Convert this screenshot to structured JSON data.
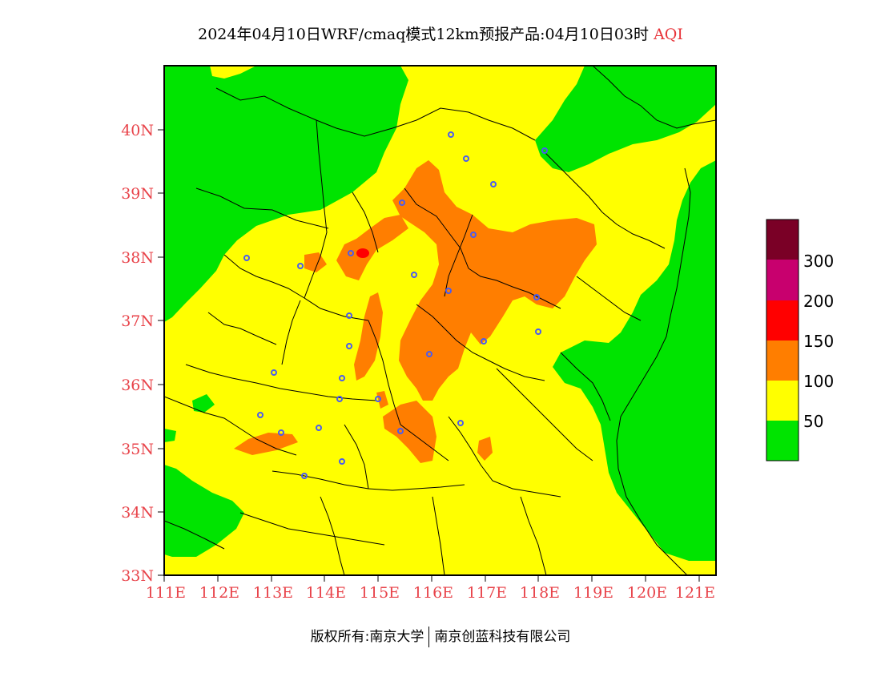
{
  "title": {
    "main": "2024年04月10日WRF/cmaq模式12km预报产品:04月10日03时",
    "variable": "AQI"
  },
  "axes": {
    "lat_labels": [
      "40N",
      "39N",
      "38N",
      "37N",
      "36N",
      "35N",
      "34N",
      "33N"
    ],
    "lon_labels": [
      "111E",
      "112E",
      "113E",
      "114E",
      "115E",
      "116E",
      "117E",
      "118E",
      "119E",
      "120E",
      "121E"
    ],
    "lat_range": [
      33,
      41
    ],
    "lon_range": [
      111,
      121.3
    ]
  },
  "legend": {
    "labels": [
      "300",
      "200",
      "150",
      "100",
      "50"
    ],
    "colors": [
      "#7a0026",
      "#c8006e",
      "#ff0000",
      "#ff7e00",
      "#ffff00",
      "#00e400"
    ]
  },
  "copyright": {
    "left": "版权所有:南京大学",
    "right": "南京创蓝科技有限公司"
  },
  "colors": {
    "good": "#00e400",
    "moderate": "#ffff00",
    "usg": "#ff7e00",
    "unhealthy": "#ff0000",
    "axis_label": "#e8434a",
    "city_marker": "#4a5cf0"
  },
  "map_layers": {
    "base_level": "moderate",
    "regions": [
      "good-northwest",
      "good-northeast",
      "good-east-coast",
      "good-southwest",
      "good-west",
      "usg-central-band",
      "usg-north-band",
      "usg-east-band",
      "usg-south",
      "unhealthy-spot"
    ]
  }
}
